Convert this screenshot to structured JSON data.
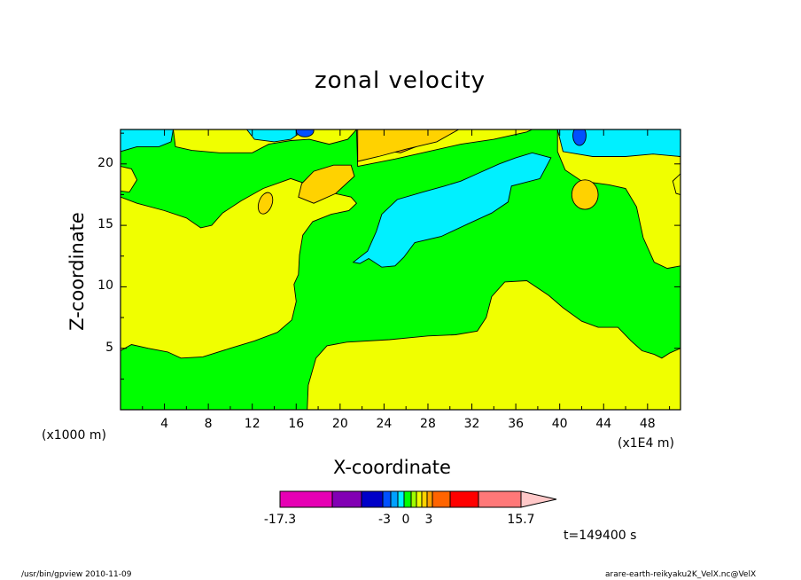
{
  "chart_data": {
    "type": "contour",
    "title": "zonal velocity",
    "xlabel": "X-coordinate",
    "ylabel": "Z-coordinate",
    "x_unit_left": "(x1000 m)",
    "x_unit_right": "(x1E4 m)",
    "xlim": [
      0,
      51
    ],
    "ylim": [
      0,
      22.8
    ],
    "x_ticks": [
      "4",
      "8",
      "12",
      "16",
      "20",
      "24",
      "28",
      "32",
      "36",
      "40",
      "44",
      "48"
    ],
    "y_ticks": [
      "5",
      "10",
      "15",
      "20"
    ],
    "colorbar": {
      "colors": [
        "#e600b4",
        "#8200b4",
        "#0000c8",
        "#0050ff",
        "#00a0ff",
        "#00f0ff",
        "#00ff00",
        "#a0ff00",
        "#f0ff00",
        "#ffd200",
        "#ffa000",
        "#ff6400",
        "#ff0000",
        "#ff7878",
        "#ffc8c8"
      ],
      "labels": [
        "-17.3",
        "-3",
        "0",
        "3",
        "15.7"
      ]
    },
    "fill_levels": {
      "light_blue": "#00f0ff",
      "blue": "#0050ff",
      "green": "#00ff00",
      "yellow": "#f0ff00",
      "light_orange": "#ffd200",
      "orange": "#ffa000"
    },
    "annotation": "t=149400 s"
  },
  "footer": {
    "left": "/usr/bin/gpview   2010-11-09",
    "right": "arare-earth-reikyaku2K_VelX.nc@VelX"
  }
}
